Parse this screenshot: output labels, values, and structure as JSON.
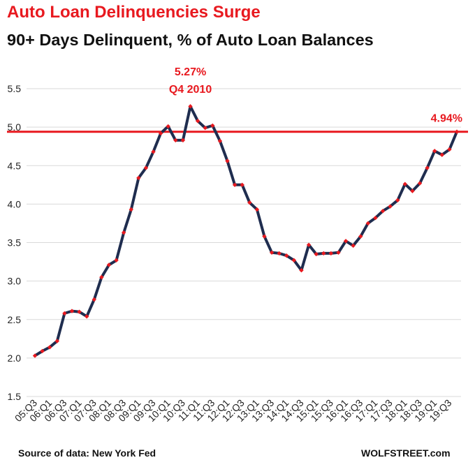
{
  "header": {
    "title": "Auto Loan Delinquencies Surge",
    "subtitle": "90+ Days Delinquent, % of Auto Loan Balances"
  },
  "footer": {
    "source": "Source of data: New York Fed",
    "brand": "WOLFSTREET.com"
  },
  "colors": {
    "title": "#e8191f",
    "line": "#1f2d4f",
    "markers": "#e8191f",
    "reference_line": "#e8191f",
    "grid": "#d9d9d9"
  },
  "chart_data": {
    "type": "line",
    "title": "90+ Days Delinquent, % of Auto Loan Balances",
    "xlabel": "",
    "ylabel": "",
    "ylim": [
      1.5,
      5.5
    ],
    "yticks": [
      "1.5",
      "2.0",
      "2.5",
      "3.0",
      "3.5",
      "4.0",
      "4.5",
      "5.0",
      "5.5"
    ],
    "grid": "horizontal",
    "xtick_labels": [
      "05:Q3",
      "06:Q1",
      "06:Q3",
      "07:Q1",
      "07:Q3",
      "08:Q1",
      "08:Q3",
      "09:Q1",
      "09:Q3",
      "10:Q1",
      "10:Q3",
      "11:Q1",
      "11:Q3",
      "12:Q1",
      "12:Q3",
      "13:Q1",
      "13:Q3",
      "14:Q1",
      "14:Q3",
      "15:Q1",
      "15:Q3",
      "16:Q1",
      "16:Q3",
      "17:Q1",
      "17:Q3",
      "18:Q1",
      "18:Q3",
      "19:Q1",
      "19:Q3"
    ],
    "x": [
      "05:Q3",
      "05:Q4",
      "06:Q1",
      "06:Q2",
      "06:Q3",
      "06:Q4",
      "07:Q1",
      "07:Q2",
      "07:Q3",
      "07:Q4",
      "08:Q1",
      "08:Q2",
      "08:Q3",
      "08:Q4",
      "09:Q1",
      "09:Q2",
      "09:Q3",
      "09:Q4",
      "10:Q1",
      "10:Q2",
      "10:Q3",
      "10:Q4",
      "11:Q1",
      "11:Q2",
      "11:Q3",
      "11:Q4",
      "12:Q1",
      "12:Q2",
      "12:Q3",
      "12:Q4",
      "13:Q1",
      "13:Q2",
      "13:Q3",
      "13:Q4",
      "14:Q1",
      "14:Q2",
      "14:Q3",
      "14:Q4",
      "15:Q1",
      "15:Q2",
      "15:Q3",
      "15:Q4",
      "16:Q1",
      "16:Q2",
      "16:Q3",
      "16:Q4",
      "17:Q1",
      "17:Q2",
      "17:Q3",
      "17:Q4",
      "18:Q1",
      "18:Q2",
      "18:Q3",
      "18:Q4",
      "19:Q1",
      "19:Q2",
      "19:Q3",
      "19:Q4"
    ],
    "series": [
      {
        "name": "",
        "values": [
          2.03,
          2.09,
          2.14,
          2.22,
          2.58,
          2.61,
          2.6,
          2.54,
          2.76,
          3.05,
          3.21,
          3.27,
          3.63,
          3.93,
          4.34,
          4.47,
          4.68,
          4.92,
          5.01,
          4.83,
          4.83,
          5.27,
          5.08,
          4.99,
          5.02,
          4.82,
          4.56,
          4.25,
          4.25,
          4.02,
          3.93,
          3.58,
          3.37,
          3.36,
          3.33,
          3.27,
          3.14,
          3.47,
          3.35,
          3.36,
          3.36,
          3.37,
          3.52,
          3.46,
          3.58,
          3.75,
          3.82,
          3.91,
          3.97,
          4.05,
          4.26,
          4.17,
          4.27,
          4.47,
          4.69,
          4.64,
          4.71,
          4.94
        ]
      }
    ],
    "reference_line": {
      "value": 4.94,
      "label": "4.94%"
    },
    "annotations": [
      {
        "text": "5.27%",
        "x": "10:Q4",
        "y": 5.27
      },
      {
        "text": "Q4 2010",
        "x": "10:Q4",
        "y": 5.27
      }
    ]
  }
}
